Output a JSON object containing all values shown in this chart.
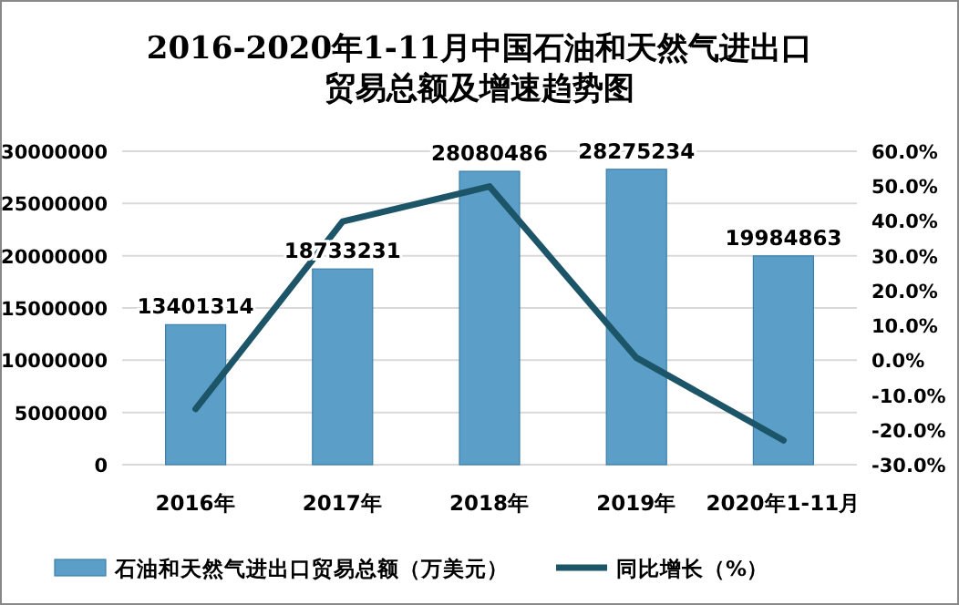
{
  "chart_data": {
    "type": "bar",
    "title": "2016-2020年1-11月中国石油和天然气进出口贸易总额及增速趋势图",
    "categories": [
      "2016年",
      "2017年",
      "2018年",
      "2019年",
      "2020年1-11月"
    ],
    "series": [
      {
        "name": "石油和天然气进出口贸易总额（万美元）",
        "color": "#5b9fc8",
        "values": [
          13401314,
          18733231,
          28080486,
          28275234,
          19984863
        ],
        "value_labels": [
          "13401314",
          "18733231",
          "28080486",
          "28275234",
          "19984863"
        ]
      },
      {
        "name": "同比增长（%）",
        "type": "line",
        "axis": "y2",
        "color": "#1c5468",
        "values": [
          -14.0,
          39.8,
          49.9,
          0.7,
          -23.0
        ]
      }
    ],
    "ylim": [
      0,
      30000000
    ],
    "yticks": [
      0,
      5000000,
      10000000,
      15000000,
      20000000,
      25000000,
      30000000
    ],
    "y2lim": [
      -30,
      60
    ],
    "y2ticks": [
      {
        "value": -30,
        "label": "-30.0%"
      },
      {
        "value": -20,
        "label": "-20.0%"
      },
      {
        "value": -10,
        "label": "-10.0%"
      },
      {
        "value": 0,
        "label": "0.0%"
      },
      {
        "value": 10,
        "label": "10.0%"
      },
      {
        "value": 20,
        "label": "20.0%"
      },
      {
        "value": 30,
        "label": "30.0%"
      },
      {
        "value": 40,
        "label": "40.0%"
      },
      {
        "value": 50,
        "label": "50.0%"
      },
      {
        "value": 60,
        "label": "60.0%"
      }
    ],
    "grid": "y",
    "legend": "bottom",
    "marker": "none"
  }
}
